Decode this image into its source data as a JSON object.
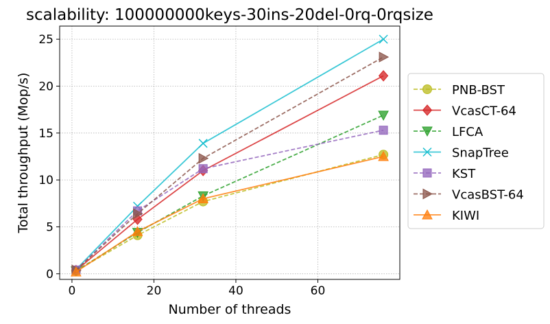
{
  "chart_data": {
    "type": "line",
    "title": "scalability: 100000000keys-30ins-20del-0rq-0rqsize",
    "xlabel": "Number of threads",
    "ylabel": "Total throughput (Mop/s)",
    "xlim": [
      -3,
      80
    ],
    "ylim": [
      -0.6,
      26.4
    ],
    "xticks": [
      0,
      20,
      40,
      60
    ],
    "yticks": [
      0,
      5,
      10,
      15,
      20,
      25
    ],
    "grid": true,
    "legend_position": "outside-right",
    "x": [
      1,
      16,
      32,
      76
    ],
    "series": [
      {
        "name": "PNB-BST",
        "values": [
          0.3,
          4.1,
          7.7,
          12.7
        ],
        "color": "#bcbd22",
        "dashed": true,
        "marker": "circle"
      },
      {
        "name": "VcasCT-64",
        "values": [
          0.35,
          5.8,
          11.0,
          21.1
        ],
        "color": "#d62728",
        "dashed": false,
        "marker": "diamond"
      },
      {
        "name": "LFCA",
        "values": [
          0.3,
          4.4,
          8.3,
          16.9
        ],
        "color": "#2ca02c",
        "dashed": true,
        "marker": "triangle-down"
      },
      {
        "name": "SnapTree",
        "values": [
          0.45,
          7.2,
          13.9,
          25.0
        ],
        "color": "#17becf",
        "dashed": false,
        "marker": "x"
      },
      {
        "name": "KST",
        "values": [
          0.4,
          6.7,
          11.2,
          15.3
        ],
        "color": "#9467bd",
        "dashed": true,
        "marker": "square"
      },
      {
        "name": "VcasBST-64",
        "values": [
          0.4,
          6.4,
          12.3,
          23.1
        ],
        "color": "#8c564b",
        "dashed": true,
        "marker": "triangle-right"
      },
      {
        "name": "KIWI",
        "values": [
          0.2,
          4.5,
          8.0,
          12.5
        ],
        "color": "#ff7f0e",
        "dashed": false,
        "marker": "triangle-up"
      }
    ]
  }
}
